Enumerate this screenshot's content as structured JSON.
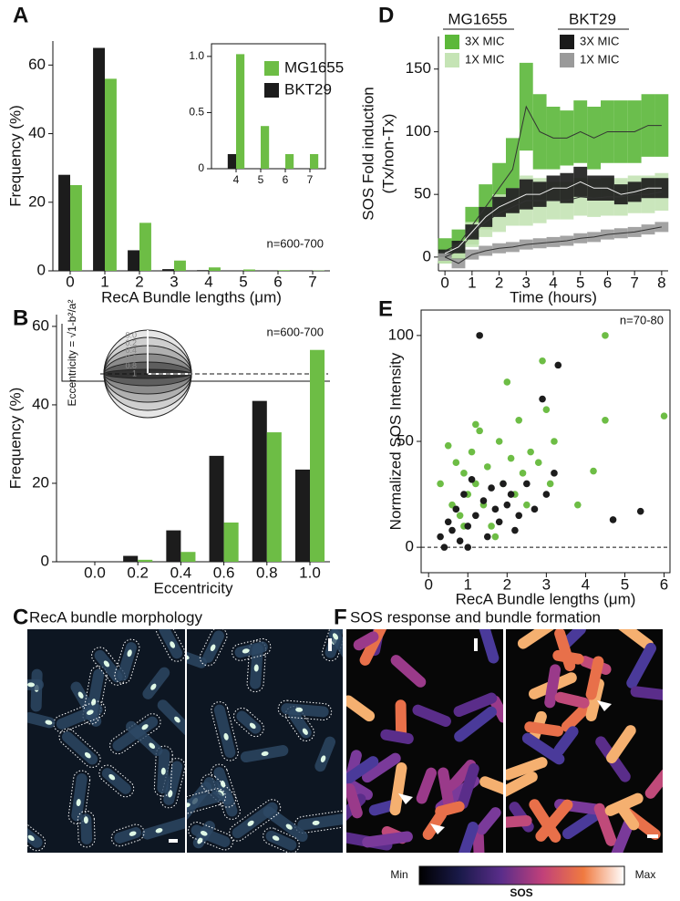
{
  "chart_data": [
    {
      "label": "A",
      "type": "bar",
      "categories": [
        "0",
        "1",
        "2",
        "3",
        "4",
        "5",
        "6",
        "7"
      ],
      "xlabel": "RecA Bundle lengths (μm)",
      "ylabel": "Frequency (%)",
      "ylim": [
        0,
        67
      ],
      "yticks": [
        0,
        20,
        40,
        60
      ],
      "series": [
        {
          "name": "BKT29",
          "color": "#1c1c1c",
          "values": [
            28,
            65,
            6,
            0.5,
            0.2,
            0,
            0,
            0
          ]
        },
        {
          "name": "MG1655",
          "color": "#6dbd45",
          "values": [
            25,
            56,
            14,
            3,
            1,
            0.4,
            0.2,
            0.1
          ]
        }
      ],
      "annotation": "n=600-700",
      "inset": {
        "categories": [
          "4",
          "5",
          "6",
          "7"
        ],
        "ylim": [
          0,
          1.08
        ],
        "yticks": [
          0,
          0.5,
          {
            "value": 1,
            "label": "1.0"
          }
        ],
        "series": [
          {
            "values": [
              0.13,
              0,
              0,
              0
            ]
          },
          {
            "values": [
              1.02,
              0.38,
              0.13,
              0.13
            ]
          }
        ]
      }
    },
    {
      "label": "B",
      "type": "bar",
      "categories": [
        "0.0",
        "0.2",
        "0.4",
        "0.6",
        "0.8",
        "1.0"
      ],
      "xlabel": "Eccentricity",
      "ylabel": "Frequency (%)",
      "ylim": [
        0,
        63
      ],
      "yticks": [
        0,
        20,
        40,
        60
      ],
      "series": [
        {
          "color": "#1c1c1c",
          "values": [
            0,
            1.5,
            8,
            27,
            41,
            23.5
          ]
        },
        {
          "color": "#6dbd45",
          "values": [
            0,
            0.5,
            2.5,
            10,
            33,
            54
          ]
        }
      ],
      "annotation": "n=600-700",
      "inset": {
        "label": "Eccentricity = √1-b²/a²",
        "scale": [
          "0.0",
          "0.2",
          "0.4",
          "0.6",
          "0.8",
          "1"
        ]
      }
    },
    {
      "label": "D",
      "type": "line",
      "xlabel": "Time (hours)",
      "ylabel": [
        "SOS Fold induction",
        "(Tx/non-Tx)"
      ],
      "xlim": [
        -0.24,
        8.24
      ],
      "xticks": [
        0,
        1,
        2,
        3,
        4,
        5,
        6,
        7,
        8
      ],
      "ylim": [
        -11,
        176
      ],
      "yticks": [
        0,
        50,
        100,
        150
      ],
      "groups": [
        "MG1655",
        "BKT29"
      ],
      "x": [
        0,
        0.5,
        1,
        1.5,
        2,
        2.5,
        3,
        3.5,
        4,
        4.5,
        5,
        5.5,
        6,
        6.5,
        7,
        7.5,
        8
      ],
      "series": [
        {
          "name": "3X MIC",
          "color": "#5cb83a",
          "values": [
            5,
            10,
            25,
            40,
            55,
            70,
            120,
            100,
            95,
            95,
            100,
            95,
            100,
            100,
            100,
            105,
            105
          ],
          "errors": [
            10,
            12,
            15,
            18,
            20,
            25,
            35,
            30,
            25,
            22,
            25,
            25,
            25,
            25,
            25,
            25,
            25
          ]
        },
        {
          "name": "1X MIC",
          "color": "#c5e4b5",
          "values": [
            0,
            5,
            18,
            28,
            35,
            40,
            45,
            45,
            45,
            45,
            48,
            47,
            48,
            48,
            50,
            50,
            52
          ],
          "errors": [
            5,
            6,
            10,
            12,
            15,
            15,
            20,
            18,
            15,
            15,
            15,
            15,
            15,
            15,
            15,
            15,
            15
          ]
        },
        {
          "name": "3X MIC",
          "color": "#1a1a1a",
          "values": [
            3,
            8,
            20,
            32,
            40,
            45,
            50,
            50,
            55,
            55,
            60,
            55,
            55,
            50,
            52,
            55,
            55
          ],
          "errors": [
            3,
            5,
            6,
            8,
            8,
            10,
            12,
            10,
            10,
            12,
            12,
            10,
            10,
            8,
            8,
            8,
            8
          ]
        },
        {
          "name": "1X MIC",
          "color": "#9a9a9a",
          "values": [
            0,
            -5,
            2,
            5,
            7,
            8,
            10,
            11,
            12,
            13,
            15,
            16,
            18,
            19,
            20,
            22,
            24
          ],
          "errors": [
            3,
            4,
            4,
            4,
            4,
            4,
            4,
            4,
            4,
            4,
            4,
            4,
            4,
            4,
            4,
            4,
            4
          ]
        }
      ]
    },
    {
      "label": "E",
      "type": "scatter",
      "xlabel": "RecA Bundle lengths (μm)",
      "ylabel": "Normalized SOS Intensity",
      "xlim": [
        -0.19,
        6.15
      ],
      "xticks": [
        0,
        1,
        2,
        3,
        4,
        5,
        6
      ],
      "ylim": [
        -12,
        112
      ],
      "yticks": [
        0,
        50,
        100
      ],
      "zero_line": true,
      "annotation": "n=70-80",
      "series": [
        {
          "color": "#6dbd45",
          "x": [
            0.3,
            0.5,
            0.6,
            0.7,
            0.8,
            0.9,
            1.0,
            1.1,
            1.2,
            1.3,
            1.4,
            1.5,
            1.6,
            1.7,
            1.8,
            1.9,
            2.0,
            2.1,
            2.2,
            2.3,
            2.4,
            2.5,
            2.6,
            2.8,
            2.9,
            3.0,
            3.1,
            3.2,
            3.8,
            4.2,
            4.5,
            4.5,
            6.0,
            1.2,
            0.9
          ],
          "values": [
            30,
            48,
            20,
            40,
            15,
            35,
            25,
            45,
            30,
            55,
            20,
            38,
            10,
            5,
            50,
            30,
            78,
            42,
            25,
            60,
            35,
            20,
            45,
            40,
            88,
            65,
            30,
            50,
            20,
            36,
            100,
            60,
            62,
            58,
            10
          ]
        },
        {
          "color": "#1c1c1c",
          "x": [
            0.3,
            0.4,
            0.5,
            0.6,
            0.7,
            0.8,
            0.9,
            1.0,
            1.1,
            1.2,
            1.3,
            1.4,
            1.5,
            1.6,
            1.7,
            1.8,
            1.9,
            2.0,
            2.1,
            2.3,
            2.5,
            2.7,
            2.9,
            3.0,
            3.2,
            3.3,
            4.7,
            5.4,
            1.0,
            2.2
          ],
          "values": [
            5,
            0,
            12,
            8,
            18,
            3,
            25,
            10,
            32,
            15,
            100,
            22,
            5,
            28,
            18,
            12,
            30,
            20,
            25,
            15,
            30,
            18,
            70,
            25,
            35,
            86,
            13,
            17,
            0,
            8
          ]
        }
      ]
    }
  ],
  "images": [
    {
      "label": "C",
      "title": "RecA bundle morphology"
    },
    {
      "label": "F",
      "title": "SOS response and bundle formation"
    }
  ],
  "colorbar": {
    "min": "Min",
    "max": "Max",
    "title": "SOS"
  }
}
